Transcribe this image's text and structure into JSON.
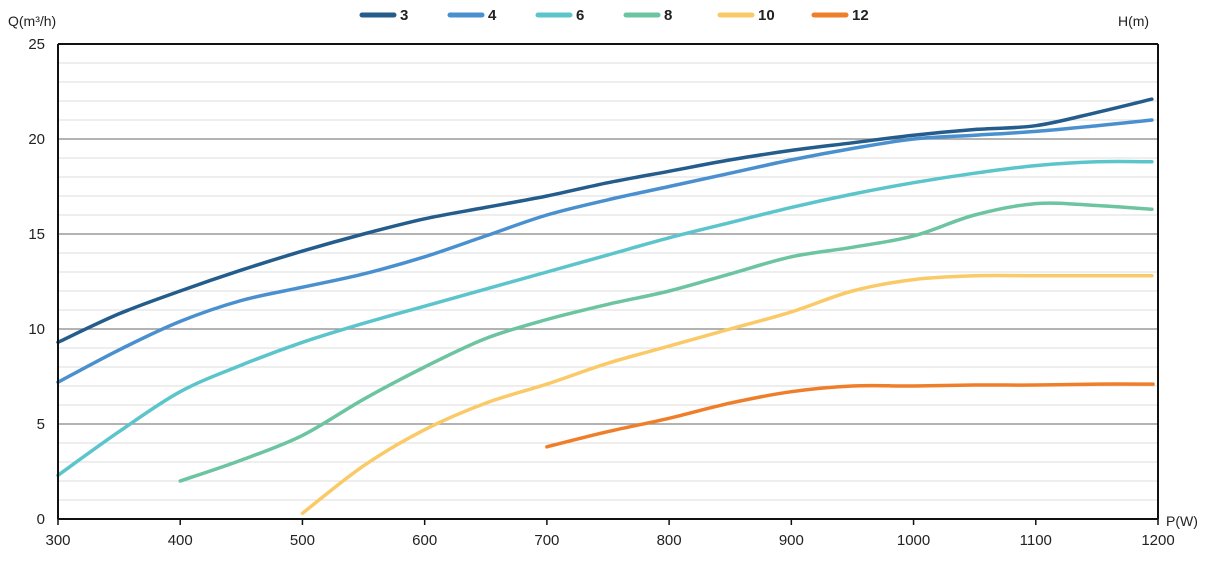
{
  "chart_data": {
    "type": "line",
    "title": "",
    "xlabel": "P(W)",
    "ylabel": "Q(m³/h)",
    "y2label": "H(m)",
    "xlim": [
      300,
      1200
    ],
    "ylim": [
      0,
      25
    ],
    "x_ticks": [
      300,
      400,
      500,
      600,
      700,
      800,
      900,
      1000,
      1100,
      1200
    ],
    "y_ticks": [
      0,
      5,
      10,
      15,
      20,
      25
    ],
    "grid": "horizontal",
    "legend_position": "top",
    "series": [
      {
        "name": "3",
        "color": "#245d8b",
        "points": [
          [
            300,
            9.3
          ],
          [
            350,
            10.8
          ],
          [
            400,
            12.0
          ],
          [
            450,
            13.1
          ],
          [
            500,
            14.1
          ],
          [
            550,
            15.0
          ],
          [
            600,
            15.8
          ],
          [
            650,
            16.4
          ],
          [
            700,
            17.0
          ],
          [
            750,
            17.7
          ],
          [
            800,
            18.3
          ],
          [
            850,
            18.9
          ],
          [
            900,
            19.4
          ],
          [
            950,
            19.8
          ],
          [
            1000,
            20.2
          ],
          [
            1050,
            20.5
          ],
          [
            1100,
            20.7
          ],
          [
            1150,
            21.4
          ],
          [
            1195,
            22.1
          ]
        ]
      },
      {
        "name": "4",
        "color": "#4a90cf",
        "points": [
          [
            300,
            7.2
          ],
          [
            350,
            8.9
          ],
          [
            400,
            10.4
          ],
          [
            450,
            11.5
          ],
          [
            500,
            12.2
          ],
          [
            550,
            12.9
          ],
          [
            600,
            13.8
          ],
          [
            650,
            14.9
          ],
          [
            700,
            16.0
          ],
          [
            750,
            16.8
          ],
          [
            800,
            17.5
          ],
          [
            850,
            18.2
          ],
          [
            900,
            18.9
          ],
          [
            950,
            19.5
          ],
          [
            1000,
            20.0
          ],
          [
            1050,
            20.2
          ],
          [
            1100,
            20.4
          ],
          [
            1150,
            20.7
          ],
          [
            1195,
            21.0
          ]
        ]
      },
      {
        "name": "6",
        "color": "#5cc5cc",
        "points": [
          [
            300,
            2.3
          ],
          [
            350,
            4.6
          ],
          [
            400,
            6.7
          ],
          [
            450,
            8.1
          ],
          [
            500,
            9.3
          ],
          [
            550,
            10.3
          ],
          [
            600,
            11.2
          ],
          [
            650,
            12.1
          ],
          [
            700,
            13.0
          ],
          [
            750,
            13.9
          ],
          [
            800,
            14.8
          ],
          [
            850,
            15.6
          ],
          [
            900,
            16.4
          ],
          [
            950,
            17.1
          ],
          [
            1000,
            17.7
          ],
          [
            1050,
            18.2
          ],
          [
            1100,
            18.6
          ],
          [
            1150,
            18.8
          ],
          [
            1195,
            18.8
          ]
        ]
      },
      {
        "name": "8",
        "color": "#6cc4a0",
        "points": [
          [
            400,
            2.0
          ],
          [
            450,
            3.1
          ],
          [
            500,
            4.4
          ],
          [
            550,
            6.3
          ],
          [
            600,
            8.0
          ],
          [
            650,
            9.5
          ],
          [
            700,
            10.5
          ],
          [
            750,
            11.3
          ],
          [
            800,
            12.0
          ],
          [
            850,
            12.9
          ],
          [
            900,
            13.8
          ],
          [
            950,
            14.3
          ],
          [
            1000,
            14.9
          ],
          [
            1050,
            16.0
          ],
          [
            1100,
            16.6
          ],
          [
            1150,
            16.5
          ],
          [
            1195,
            16.3
          ]
        ]
      },
      {
        "name": "10",
        "color": "#fbca68",
        "points": [
          [
            500,
            0.3
          ],
          [
            550,
            2.8
          ],
          [
            600,
            4.7
          ],
          [
            650,
            6.1
          ],
          [
            700,
            7.1
          ],
          [
            750,
            8.2
          ],
          [
            800,
            9.1
          ],
          [
            850,
            10.0
          ],
          [
            900,
            10.9
          ],
          [
            950,
            12.0
          ],
          [
            1000,
            12.6
          ],
          [
            1050,
            12.8
          ],
          [
            1100,
            12.8
          ],
          [
            1150,
            12.8
          ],
          [
            1195,
            12.8
          ]
        ]
      },
      {
        "name": "12",
        "color": "#ef7e2b",
        "points": [
          [
            700,
            3.8
          ],
          [
            750,
            4.6
          ],
          [
            800,
            5.3
          ],
          [
            850,
            6.1
          ],
          [
            900,
            6.7
          ],
          [
            950,
            7.0
          ],
          [
            1000,
            7.0
          ],
          [
            1050,
            7.05
          ],
          [
            1100,
            7.05
          ],
          [
            1150,
            7.1
          ],
          [
            1196,
            7.1
          ]
        ]
      }
    ]
  }
}
